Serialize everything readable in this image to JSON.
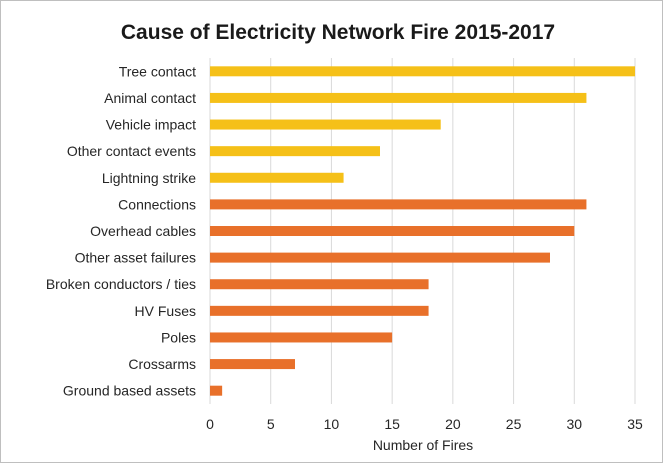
{
  "chart_data": {
    "type": "bar",
    "orientation": "horizontal",
    "title": "Cause of Electricity Network Fire 2015-2017",
    "xlabel": "Number of Fires",
    "ylabel": "",
    "xlim": [
      0,
      35
    ],
    "x_ticks": [
      0,
      5,
      10,
      15,
      20,
      25,
      30,
      35
    ],
    "grid": true,
    "legend": "none",
    "categories": [
      "Tree contact",
      "Animal contact",
      "Vehicle impact",
      "Other contact events",
      "Lightning strike",
      "Connections",
      "Overhead cables",
      "Other asset failures",
      "Broken conductors / ties",
      "HV Fuses",
      "Poles",
      "Crossarms",
      "Ground based assets"
    ],
    "values": [
      35,
      31,
      19,
      14,
      11,
      31,
      30,
      28,
      18,
      18,
      15,
      7,
      1
    ],
    "bar_colors": [
      "#f5c018",
      "#f5c018",
      "#f5c018",
      "#f5c018",
      "#f5c018",
      "#e8702a",
      "#e8702a",
      "#e8702a",
      "#e8702a",
      "#e8702a",
      "#e8702a",
      "#e8702a",
      "#e8702a"
    ]
  }
}
